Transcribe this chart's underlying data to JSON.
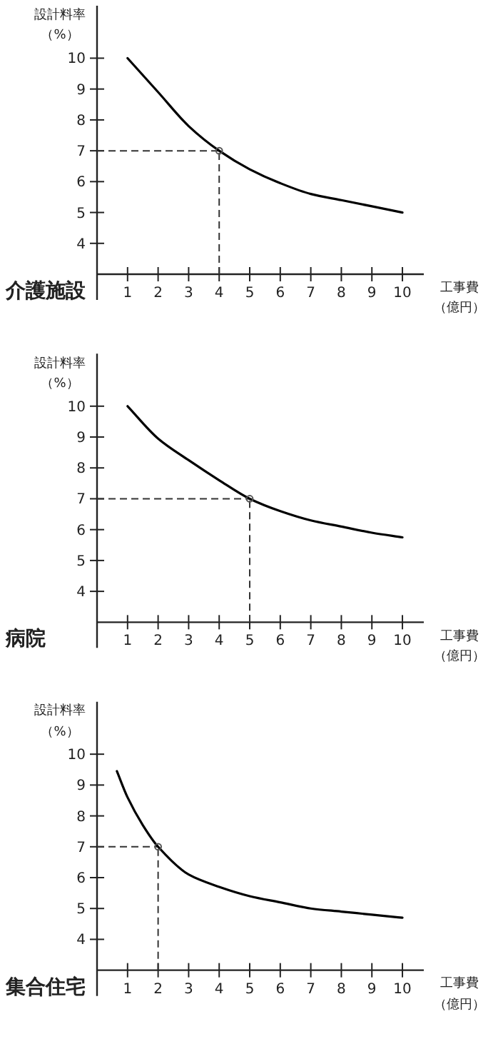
{
  "chart_data": [
    {
      "type": "line",
      "title": "介護施設",
      "xlabel": "工事費（億円）",
      "ylabel": "設計料率（%）",
      "xlim": [
        0,
        10.7
      ],
      "ylim": [
        3,
        11.7
      ],
      "xticks": [
        1,
        2,
        3,
        4,
        5,
        6,
        7,
        8,
        9,
        10
      ],
      "yticks": [
        4,
        5,
        6,
        7,
        8,
        9,
        10
      ],
      "grid": false,
      "line_style": "solid",
      "marker": "none",
      "series": [
        {
          "color": "#000000",
          "x": [
            1,
            2,
            3,
            4,
            5,
            6,
            7,
            8,
            9,
            10
          ],
          "values": [
            10,
            8.9,
            7.8,
            7.0,
            6.4,
            5.95,
            5.6,
            5.4,
            5.2,
            5.0
          ]
        },
        {
          "type": "scatter",
          "color": "#555555",
          "marker": "circle",
          "x": [
            4
          ],
          "values": [
            7
          ]
        }
      ],
      "ref_lines": [
        {
          "axis": "y",
          "value": 7,
          "line_style": "dashed",
          "color": "#333333"
        },
        {
          "axis": "x",
          "value": 4,
          "line_style": "dashed",
          "color": "#333333"
        }
      ]
    },
    {
      "type": "line",
      "title": "病院",
      "xlabel": "工事費（億円）",
      "ylabel": "設計料率（%）",
      "xlim": [
        0,
        10.7
      ],
      "ylim": [
        3,
        11.7
      ],
      "xticks": [
        1,
        2,
        3,
        4,
        5,
        6,
        7,
        8,
        9,
        10
      ],
      "yticks": [
        4,
        5,
        6,
        7,
        8,
        9,
        10
      ],
      "grid": false,
      "line_style": "solid",
      "marker": "none",
      "series": [
        {
          "color": "#000000",
          "x": [
            1,
            2,
            3,
            4,
            5,
            6,
            7,
            8,
            9,
            10
          ],
          "values": [
            10,
            8.95,
            8.25,
            7.6,
            7.0,
            6.6,
            6.3,
            6.1,
            5.9,
            5.75
          ]
        },
        {
          "type": "scatter",
          "color": "#555555",
          "marker": "circle",
          "x": [
            5
          ],
          "values": [
            7
          ]
        }
      ],
      "ref_lines": [
        {
          "axis": "y",
          "value": 7,
          "line_style": "dashed",
          "color": "#333333"
        },
        {
          "axis": "x",
          "value": 5,
          "line_style": "dashed",
          "color": "#333333"
        }
      ]
    },
    {
      "type": "line",
      "title": "集合住宅",
      "xlabel": "工事費（億円）",
      "ylabel": "設計料率（%）",
      "xlim": [
        0,
        10.7
      ],
      "ylim": [
        3,
        11.7
      ],
      "xticks": [
        1,
        2,
        3,
        4,
        5,
        6,
        7,
        8,
        9,
        10
      ],
      "yticks": [
        4,
        5,
        6,
        7,
        8,
        9,
        10
      ],
      "grid": false,
      "line_style": "solid",
      "marker": "none",
      "series": [
        {
          "color": "#000000",
          "x": [
            0.65,
            1,
            1.5,
            2,
            3,
            4,
            5,
            6,
            7,
            8,
            9,
            10
          ],
          "values": [
            9.45,
            8.6,
            7.7,
            7.0,
            6.1,
            5.7,
            5.4,
            5.2,
            5.0,
            4.9,
            4.8,
            4.7
          ]
        },
        {
          "type": "scatter",
          "color": "#555555",
          "marker": "circle",
          "x": [
            2
          ],
          "values": [
            7
          ]
        }
      ],
      "ref_lines": [
        {
          "axis": "y",
          "value": 7,
          "line_style": "dashed",
          "color": "#333333"
        },
        {
          "axis": "x",
          "value": 2,
          "line_style": "dashed",
          "color": "#333333"
        }
      ]
    }
  ]
}
